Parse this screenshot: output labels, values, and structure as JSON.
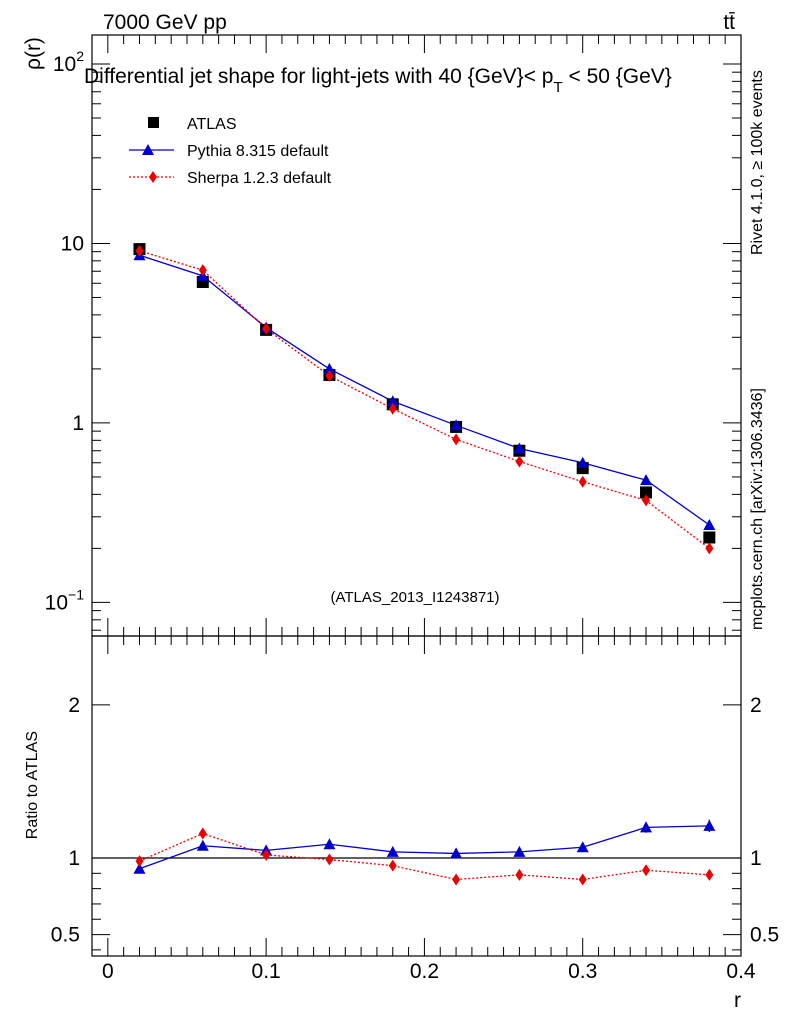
{
  "header": {
    "beam": "7000 GeV pp",
    "process": "tt̄"
  },
  "side_labels": {
    "rivet": "Rivet 4.1.0, ≥ 100k events",
    "source": "mcplots.cern.ch [arXiv:1306.3436]"
  },
  "colors": {
    "atlas": "#000000",
    "pythia": "#0000cc",
    "sherpa": "#ee0000",
    "watermark": "#999999"
  },
  "chart_data": [
    {
      "type": "scatter",
      "title": "Differential jet shape for light-jets with 40 {GeV}< p_T < 50 {GeV}",
      "title_main": "Differential jet shape for light-jets with 40 {GeV}< p",
      "title_sub": "T",
      "title_tail": " < 50 {GeV}",
      "ylabel": "ρ(r)",
      "yscale": "log",
      "ylim": [
        0.065,
        145
      ],
      "xlim": [
        -0.01,
        0.4
      ],
      "ytick_labels": [
        {
          "value": 100,
          "base": "10",
          "exp": "2"
        },
        {
          "value": 10,
          "base": "10",
          "exp": ""
        },
        {
          "value": 1,
          "base": "1",
          "exp": ""
        },
        {
          "value": 0.1,
          "base": "10",
          "exp": "−1"
        }
      ],
      "watermark": "(ATLAS_2013_I1243871)",
      "legend": {
        "placement": "top-left",
        "entries": [
          "ATLAS",
          "Pythia 8.315 default",
          "Sherpa 1.2.3 default"
        ]
      },
      "x": [
        0.02,
        0.06,
        0.1,
        0.14,
        0.18,
        0.22,
        0.26,
        0.3,
        0.34,
        0.38
      ],
      "series": [
        {
          "name": "ATLAS",
          "marker": "square",
          "style": "points",
          "values": [
            9.3,
            6.1,
            3.3,
            1.85,
            1.27,
            0.95,
            0.7,
            0.56,
            0.41,
            0.23
          ]
        },
        {
          "name": "Pythia 8.315 default",
          "marker": "triangle",
          "style": "solid",
          "values": [
            8.6,
            6.6,
            3.4,
            2.0,
            1.32,
            0.97,
            0.72,
            0.6,
            0.48,
            0.27
          ]
        },
        {
          "name": "Sherpa 1.2.3 default",
          "marker": "diamond",
          "style": "dotted",
          "values": [
            9.1,
            7.1,
            3.35,
            1.83,
            1.2,
            0.81,
            0.61,
            0.47,
            0.37,
            0.2
          ]
        }
      ]
    },
    {
      "type": "scatter",
      "xlabel": "r",
      "ylabel": "Ratio to ATLAS",
      "ylim": [
        0.36,
        2.45
      ],
      "xlim": [
        -0.01,
        0.4
      ],
      "yticks": [
        0.5,
        1,
        2
      ],
      "ytick_labels": [
        "0.5",
        "1",
        "2"
      ],
      "xticks": [
        0,
        0.1,
        0.2,
        0.3,
        0.4
      ],
      "xtick_labels": [
        "0",
        "0.1",
        "0.2",
        "0.3",
        "0.4"
      ],
      "reference": 1,
      "x": [
        0.02,
        0.06,
        0.1,
        0.14,
        0.18,
        0.22,
        0.26,
        0.3,
        0.34,
        0.38
      ],
      "series": [
        {
          "name": "Pythia 8.315 default",
          "marker": "triangle",
          "style": "solid",
          "values": [
            0.93,
            1.08,
            1.05,
            1.09,
            1.04,
            1.03,
            1.04,
            1.07,
            1.2,
            1.21
          ],
          "errors": [
            0.01,
            0.015,
            0.015,
            0.02,
            0.02,
            0.02,
            0.025,
            0.025,
            0.035,
            0.04
          ]
        },
        {
          "name": "Sherpa 1.2.3 default",
          "marker": "diamond",
          "style": "dotted",
          "values": [
            0.98,
            1.16,
            1.02,
            0.99,
            0.95,
            0.86,
            0.89,
            0.86,
            0.92,
            0.89
          ],
          "errors": [
            0.01,
            0.015,
            0.01,
            0.01,
            0.01,
            0.01,
            0.01,
            0.01,
            0.01,
            0.015
          ]
        }
      ]
    }
  ]
}
